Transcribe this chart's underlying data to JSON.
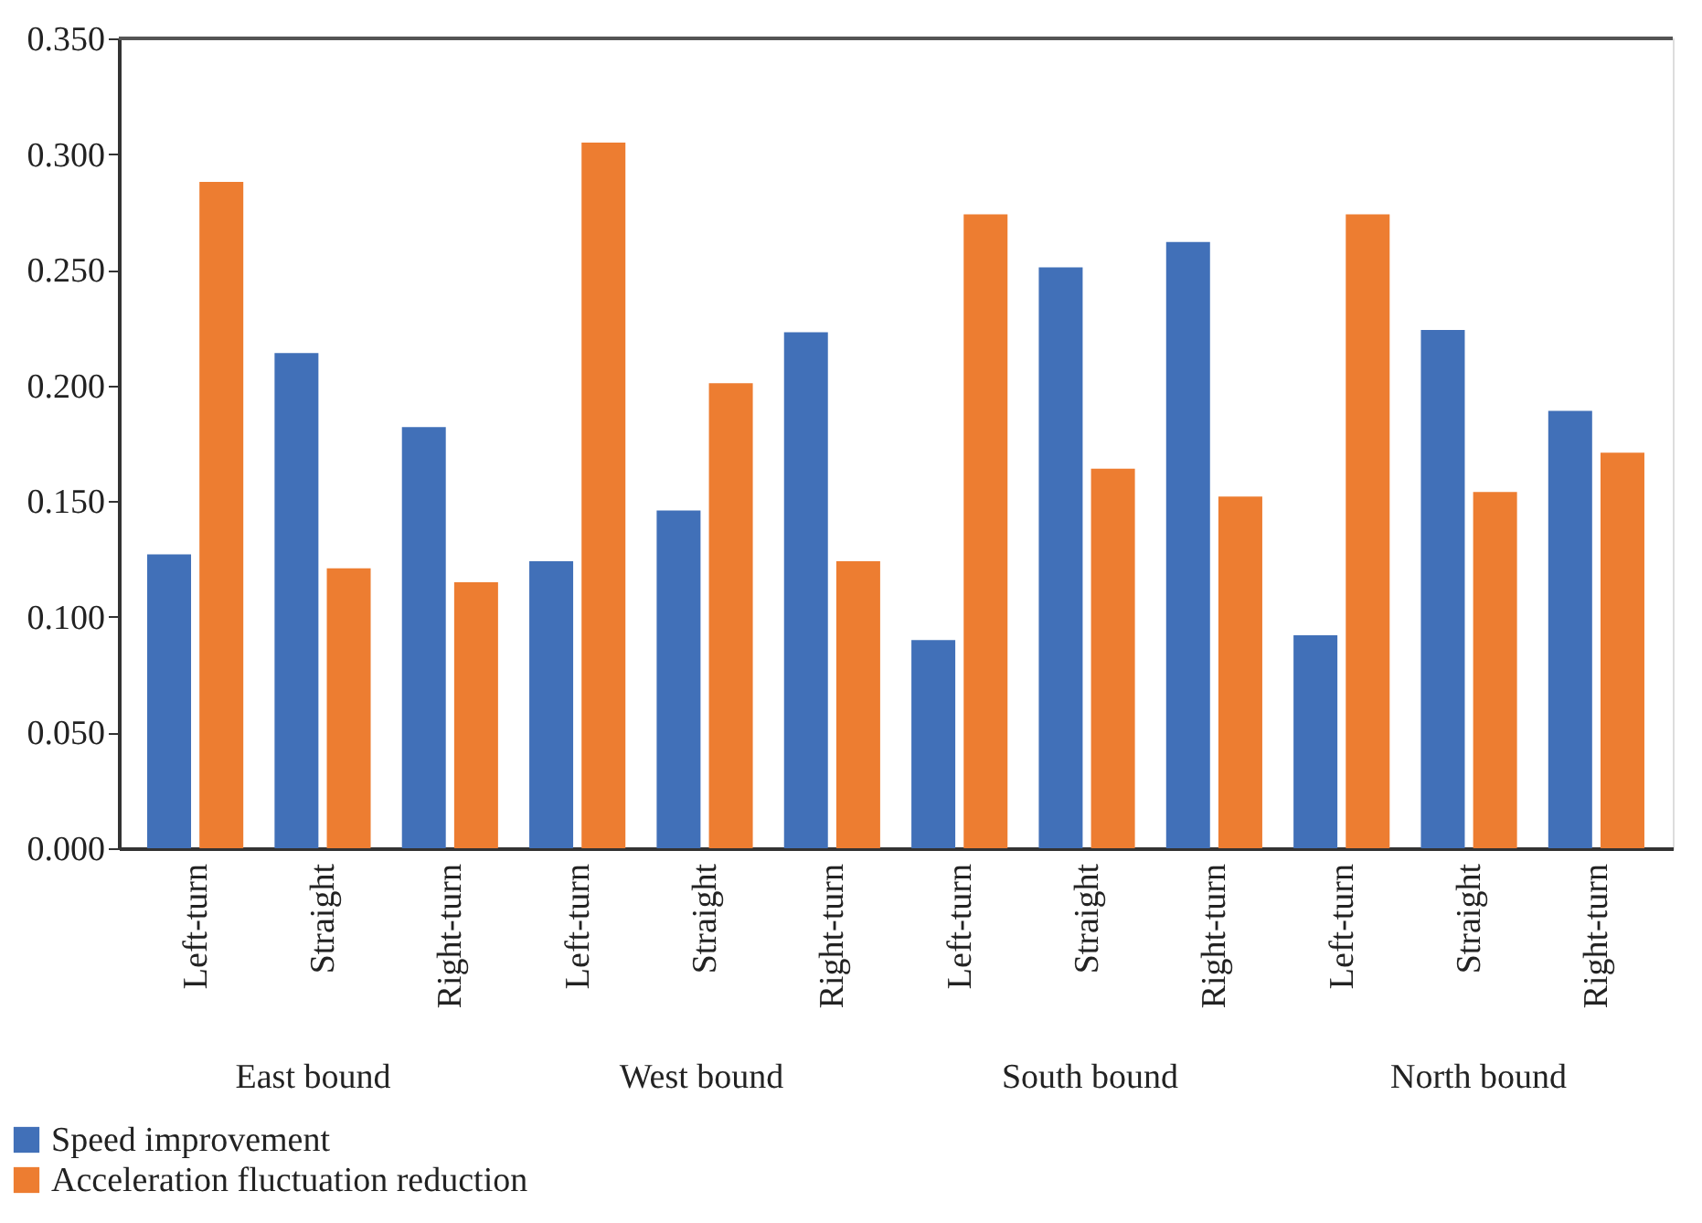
{
  "chart_data": {
    "type": "bar",
    "categories": [
      "Left-turn",
      "Straight",
      "Right-turn",
      "Left-turn",
      "Straight",
      "Right-turn",
      "Left-turn",
      "Straight",
      "Right-turn",
      "Left-turn",
      "Straight",
      "Right-turn"
    ],
    "series": [
      {
        "name": "Speed improvement",
        "color": "#4170b8",
        "values": [
          0.127,
          0.214,
          0.182,
          0.124,
          0.146,
          0.223,
          0.09,
          0.251,
          0.262,
          0.092,
          0.224,
          0.189
        ]
      },
      {
        "name": "Acceleration fluctuation reduction",
        "color": "#ed7d31",
        "values": [
          0.288,
          0.121,
          0.115,
          0.305,
          0.201,
          0.124,
          0.274,
          0.164,
          0.152,
          0.274,
          0.154,
          0.171
        ]
      }
    ],
    "annotations": [
      "East bound",
      "West bound",
      "South bound",
      "North bound"
    ],
    "ylim": [
      0,
      0.35
    ],
    "yticks": [
      {
        "value": 0,
        "label": "0.000"
      },
      {
        "value": 0.05,
        "label": "0.050"
      },
      {
        "value": 0.1,
        "label": "0.100"
      },
      {
        "value": 0.15,
        "label": "0.150"
      },
      {
        "value": 0.2,
        "label": "0.200"
      },
      {
        "value": 0.25,
        "label": "0.250"
      },
      {
        "value": 0.3,
        "label": "0.300"
      },
      {
        "value": 0.35,
        "label": "0.350"
      }
    ],
    "grid": false,
    "legend": "bottom left"
  }
}
